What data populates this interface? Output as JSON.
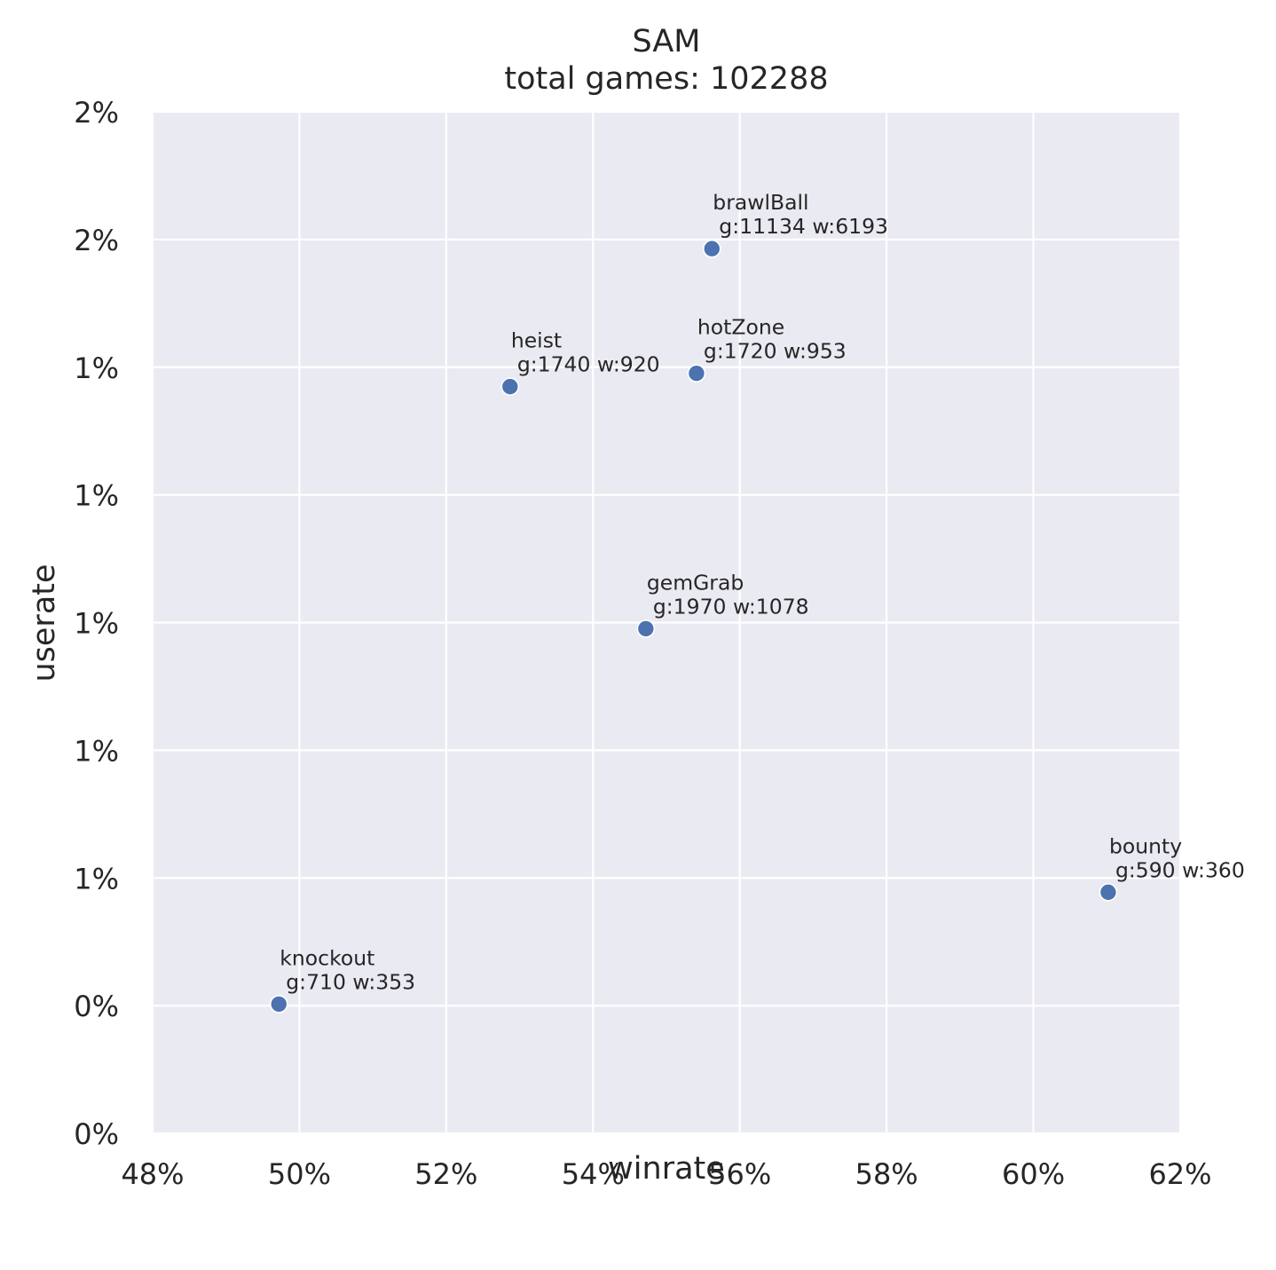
{
  "chart_data": {
    "type": "scatter",
    "title": "SAM",
    "subtitle": "total games: 102288",
    "xlabel": "winrate",
    "ylabel": "userate",
    "xlim": [
      0.48,
      0.62
    ],
    "ylim": [
      0.0,
      0.02
    ],
    "xticks": [
      0.48,
      0.5,
      0.52,
      0.54,
      0.56,
      0.58,
      0.6,
      0.62
    ],
    "xtick_labels": [
      "48%",
      "50%",
      "52%",
      "54%",
      "56%",
      "58%",
      "60%",
      "62%"
    ],
    "yticks": [
      0.0,
      0.0025,
      0.005,
      0.0075,
      0.01,
      0.0125,
      0.015,
      0.0175,
      0.02
    ],
    "ytick_labels": [
      "0%",
      "0%",
      "1%",
      "1%",
      "1%",
      "1%",
      "1%",
      "2%",
      "2%"
    ],
    "grid": true,
    "points": [
      {
        "mode": "brawlBall",
        "stats": "g:11134 w:6193",
        "x": 0.5562,
        "y": 0.01732
      },
      {
        "mode": "heist",
        "stats": "g:1740 w:920",
        "x": 0.5287,
        "y": 0.01462
      },
      {
        "mode": "hotZone",
        "stats": "g:1720 w:953",
        "x": 0.5541,
        "y": 0.01488
      },
      {
        "mode": "gemGrab",
        "stats": "g:1970 w:1078",
        "x": 0.5472,
        "y": 0.00988
      },
      {
        "mode": "bounty",
        "stats": "g:590 w:360",
        "x": 0.6102,
        "y": 0.00472
      },
      {
        "mode": "knockout",
        "stats": "g:710 w:353",
        "x": 0.4972,
        "y": 0.00253
      }
    ],
    "colors": {
      "point": "#4c72b0",
      "background": "#eaeaf2",
      "grid": "#ffffff"
    }
  }
}
